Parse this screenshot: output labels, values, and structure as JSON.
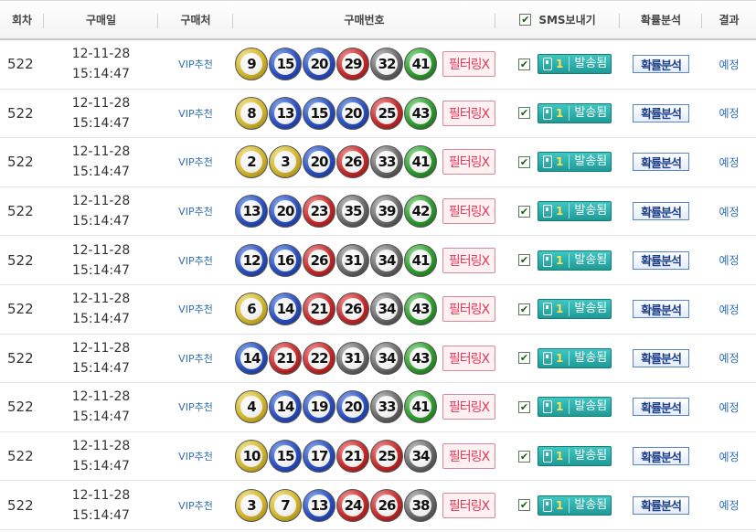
{
  "header": {
    "round": "회차",
    "date": "구매일",
    "shop": "구매처",
    "numbers": "구매번호",
    "sms": "SMS보내기",
    "analysis": "확률분석",
    "result": "결과"
  },
  "labels": {
    "filter": "필터링X",
    "sms_count": "1",
    "sms_status": "발송됨",
    "analysis": "확률분석",
    "checkbox": "✔"
  },
  "ball_colors": {
    "yellow": "#d1b52c",
    "blue": "#2a4fbf",
    "red": "#c42a2a",
    "gray": "#6a6a6a",
    "green": "#2f9b2f"
  },
  "rows": [
    {
      "round": "522",
      "date": "12-11-28",
      "time": "15:14:47",
      "shop": "VIP추천",
      "numbers": [
        "9",
        "15",
        "20",
        "29",
        "32",
        "41"
      ],
      "result": "예정"
    },
    {
      "round": "522",
      "date": "12-11-28",
      "time": "15:14:47",
      "shop": "VIP추천",
      "numbers": [
        "8",
        "13",
        "15",
        "20",
        "25",
        "43"
      ],
      "result": "예정"
    },
    {
      "round": "522",
      "date": "12-11-28",
      "time": "15:14:47",
      "shop": "VIP추천",
      "numbers": [
        "2",
        "3",
        "20",
        "26",
        "33",
        "41"
      ],
      "result": "예정"
    },
    {
      "round": "522",
      "date": "12-11-28",
      "time": "15:14:47",
      "shop": "VIP추천",
      "numbers": [
        "13",
        "20",
        "23",
        "35",
        "39",
        "42"
      ],
      "result": "예정"
    },
    {
      "round": "522",
      "date": "12-11-28",
      "time": "15:14:47",
      "shop": "VIP추천",
      "numbers": [
        "12",
        "16",
        "26",
        "31",
        "34",
        "41"
      ],
      "result": "예정"
    },
    {
      "round": "522",
      "date": "12-11-28",
      "time": "15:14:47",
      "shop": "VIP추천",
      "numbers": [
        "6",
        "14",
        "21",
        "26",
        "34",
        "43"
      ],
      "result": "예정"
    },
    {
      "round": "522",
      "date": "12-11-28",
      "time": "15:14:47",
      "shop": "VIP추천",
      "numbers": [
        "14",
        "21",
        "22",
        "31",
        "34",
        "43"
      ],
      "result": "예정"
    },
    {
      "round": "522",
      "date": "12-11-28",
      "time": "15:14:47",
      "shop": "VIP추천",
      "numbers": [
        "4",
        "14",
        "19",
        "20",
        "33",
        "41"
      ],
      "result": "예정"
    },
    {
      "round": "522",
      "date": "12-11-28",
      "time": "15:14:47",
      "shop": "VIP추천",
      "numbers": [
        "10",
        "15",
        "17",
        "21",
        "25",
        "34"
      ],
      "result": "예정"
    },
    {
      "round": "522",
      "date": "12-11-28",
      "time": "15:14:47",
      "shop": "VIP추천",
      "numbers": [
        "3",
        "7",
        "13",
        "24",
        "26",
        "38"
      ],
      "result": "예정"
    }
  ]
}
